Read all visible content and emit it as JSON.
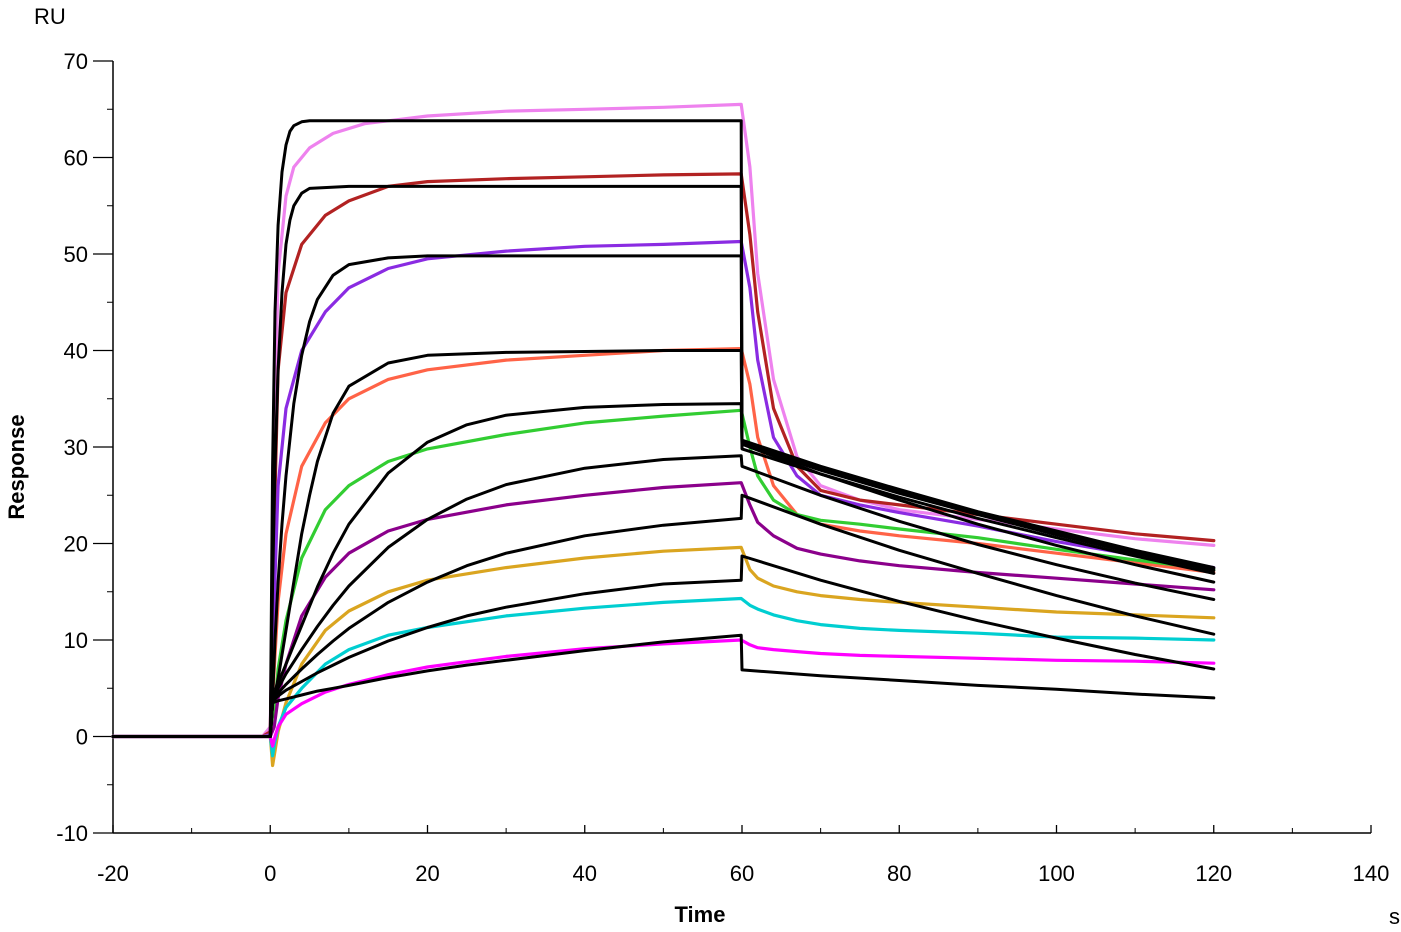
{
  "chart_data": {
    "type": "line",
    "title": "",
    "xlabel": "Time",
    "ylabel": "Response",
    "x_unit": "s",
    "y_unit": "RU",
    "xlim": [
      -20,
      140
    ],
    "ylim": [
      -10,
      70
    ],
    "x_ticks": [
      -20,
      0,
      20,
      40,
      60,
      80,
      100,
      120,
      140
    ],
    "y_ticks": [
      -10,
      0,
      10,
      20,
      30,
      40,
      50,
      60,
      70
    ],
    "grid": false,
    "legend": "none",
    "series": [
      {
        "color": "#ee82ee",
        "x": [
          -20,
          -1,
          0,
          0.5,
          1,
          2,
          3,
          5,
          8,
          12,
          20,
          30,
          40,
          50,
          59.9,
          61,
          62,
          64,
          67,
          70,
          75,
          80,
          90,
          100,
          110,
          120
        ],
        "y": [
          0,
          0,
          1,
          30,
          48,
          56,
          59,
          61,
          62.5,
          63.5,
          64.3,
          64.8,
          65,
          65.2,
          65.5,
          59,
          48,
          37,
          29,
          26,
          24.5,
          23.5,
          22.5,
          21.5,
          20.5,
          19.8
        ]
      },
      {
        "color": "#b22222",
        "x": [
          -20,
          -1,
          0,
          0.5,
          1,
          2,
          4,
          7,
          10,
          15,
          20,
          30,
          40,
          50,
          59.9,
          61,
          62,
          64,
          67,
          70,
          75,
          80,
          90,
          100,
          110,
          120
        ],
        "y": [
          0,
          0,
          0.5,
          22,
          38,
          46,
          51,
          54,
          55.5,
          57,
          57.5,
          57.8,
          58,
          58.2,
          58.3,
          52,
          44,
          34,
          28,
          25.5,
          24.5,
          24,
          23,
          22,
          21,
          20.3
        ]
      },
      {
        "color": "#8a2be2",
        "x": [
          -20,
          -1,
          0,
          0.5,
          1,
          2,
          4,
          7,
          10,
          15,
          20,
          30,
          40,
          50,
          59.9,
          61,
          62,
          64,
          67,
          70,
          75,
          80,
          90,
          100,
          110,
          120
        ],
        "y": [
          0,
          0,
          0.2,
          14,
          26,
          34,
          40,
          44,
          46.5,
          48.5,
          49.5,
          50.3,
          50.8,
          51,
          51.3,
          46.5,
          39,
          31,
          27,
          25,
          24,
          23.2,
          21.8,
          20.2,
          18.8,
          17.5
        ]
      },
      {
        "color": "#ff6347",
        "x": [
          -20,
          -1,
          0,
          0.5,
          1,
          2,
          4,
          7,
          10,
          15,
          20,
          30,
          40,
          50,
          59.9,
          61,
          62,
          64,
          67,
          70,
          75,
          80,
          90,
          100,
          110,
          120
        ],
        "y": [
          0,
          0,
          0,
          7,
          14,
          21,
          28,
          32.5,
          35,
          37,
          38,
          39,
          39.5,
          40,
          40.2,
          36.5,
          31,
          26,
          23,
          22,
          21.3,
          20.8,
          20,
          19,
          18,
          17
        ]
      },
      {
        "color": "#32cd32",
        "x": [
          -20,
          -1,
          0,
          0.5,
          1,
          2,
          4,
          7,
          10,
          15,
          20,
          30,
          40,
          50,
          59.9,
          61,
          62,
          64,
          67,
          70,
          75,
          80,
          90,
          100,
          110,
          120
        ],
        "y": [
          0,
          0,
          0,
          2,
          7,
          12,
          18.5,
          23.5,
          26,
          28.5,
          29.8,
          31.3,
          32.5,
          33.2,
          33.8,
          30,
          27,
          24.5,
          23,
          22.4,
          22,
          21.5,
          20.6,
          19.4,
          18.3,
          17.3
        ]
      },
      {
        "color": "#8b008b",
        "x": [
          -20,
          -1,
          0,
          0.5,
          1,
          2,
          4,
          7,
          10,
          15,
          20,
          30,
          40,
          50,
          59.9,
          61,
          62,
          64,
          67,
          70,
          75,
          80,
          90,
          100,
          110,
          120
        ],
        "y": [
          0,
          0,
          0,
          1,
          4,
          7.5,
          12.5,
          16.5,
          19,
          21.3,
          22.5,
          24,
          25,
          25.8,
          26.3,
          24,
          22.2,
          20.8,
          19.5,
          18.9,
          18.2,
          17.7,
          17,
          16.4,
          15.8,
          15.2
        ]
      },
      {
        "color": "#daa520",
        "x": [
          -20,
          -1,
          0,
          0.3,
          0.6,
          1,
          2,
          4,
          7,
          10,
          15,
          20,
          30,
          40,
          50,
          59.9,
          61,
          62,
          64,
          67,
          70,
          75,
          80,
          90,
          100,
          110,
          120
        ],
        "y": [
          0,
          0,
          0,
          -3,
          -1.5,
          0.5,
          3.5,
          7.5,
          11,
          13,
          15,
          16.2,
          17.5,
          18.5,
          19.2,
          19.6,
          17.3,
          16.4,
          15.6,
          15,
          14.6,
          14.2,
          13.9,
          13.4,
          12.9,
          12.6,
          12.3
        ]
      },
      {
        "color": "#00ced1",
        "x": [
          -20,
          -1,
          0,
          0.3,
          0.6,
          1,
          2,
          4,
          7,
          10,
          15,
          20,
          30,
          40,
          50,
          59.9,
          61,
          62,
          64,
          67,
          70,
          75,
          80,
          90,
          100,
          110,
          120
        ],
        "y": [
          0,
          0,
          0,
          -2,
          -0.5,
          1,
          3,
          5,
          7.5,
          9,
          10.5,
          11.3,
          12.5,
          13.3,
          13.9,
          14.3,
          13.6,
          13.2,
          12.6,
          12,
          11.6,
          11.2,
          11,
          10.7,
          10.3,
          10.2,
          10
        ]
      },
      {
        "color": "#ff00ff",
        "x": [
          -20,
          -1,
          0,
          0.3,
          0.6,
          1,
          2,
          4,
          7,
          10,
          15,
          20,
          30,
          40,
          50,
          59.9,
          61,
          62,
          64,
          67,
          70,
          75,
          80,
          90,
          100,
          110,
          120
        ],
        "y": [
          0,
          0,
          0,
          -1,
          0,
          1,
          2.3,
          3.4,
          4.6,
          5.4,
          6.4,
          7.2,
          8.3,
          9.1,
          9.6,
          10,
          9.5,
          9.2,
          9,
          8.8,
          8.6,
          8.4,
          8.3,
          8.1,
          7.9,
          7.8,
          7.6
        ]
      },
      {
        "color": "#000000",
        "fit": true,
        "x": [
          -20,
          0,
          0.3,
          0.6,
          1,
          1.5,
          2,
          2.5,
          3,
          4,
          5,
          10,
          20,
          30,
          40,
          50,
          59.9,
          60,
          70,
          80,
          90,
          100,
          110,
          120
        ],
        "y": [
          0,
          0,
          28,
          44,
          53,
          58.5,
          61.3,
          62.7,
          63.3,
          63.7,
          63.8,
          63.8,
          63.8,
          63.8,
          63.8,
          63.8,
          63.8,
          30.7,
          28,
          25.6,
          23.3,
          21.3,
          19.3,
          17.5
        ]
      },
      {
        "color": "#000000",
        "fit": true,
        "x": [
          -20,
          0,
          0.3,
          0.6,
          1,
          1.5,
          2,
          2.5,
          3,
          4,
          5,
          10,
          20,
          30,
          40,
          50,
          59.9,
          60,
          70,
          80,
          90,
          100,
          110,
          120
        ],
        "y": [
          0,
          0,
          16,
          28,
          38,
          46,
          51,
          53.5,
          55,
          56.3,
          56.8,
          57,
          57,
          57,
          57,
          57,
          57,
          30.5,
          27.8,
          25.4,
          23.2,
          21.1,
          19.2,
          17.4
        ]
      },
      {
        "color": "#000000",
        "fit": true,
        "x": [
          -20,
          0,
          0.3,
          0.6,
          1,
          1.5,
          2,
          3,
          4,
          5,
          6,
          8,
          10,
          15,
          20,
          30,
          40,
          50,
          59.9,
          60,
          70,
          80,
          90,
          100,
          110,
          120
        ],
        "y": [
          0,
          0,
          4,
          10,
          16,
          22,
          27,
          34.5,
          39.5,
          43,
          45.3,
          47.8,
          48.9,
          49.6,
          49.8,
          49.8,
          49.8,
          49.8,
          49.8,
          30.3,
          27.6,
          25.2,
          23,
          20.9,
          19,
          17.2
        ]
      },
      {
        "color": "#000000",
        "fit": true,
        "x": [
          -20,
          0,
          0.3,
          0.6,
          1,
          2,
          3,
          4,
          5,
          6,
          8,
          10,
          15,
          20,
          30,
          40,
          50,
          59.9,
          60,
          70,
          80,
          90,
          100,
          110,
          120
        ],
        "y": [
          0,
          0,
          3.5,
          4.5,
          6,
          11,
          16,
          21,
          25,
          28.5,
          33.5,
          36.3,
          38.7,
          39.5,
          39.8,
          39.9,
          40,
          40,
          29.8,
          27.2,
          24.8,
          22.6,
          20.6,
          18.7,
          16.9
        ]
      },
      {
        "color": "#000000",
        "fit": true,
        "x": [
          -20,
          0,
          0.3,
          0.6,
          1,
          2,
          3,
          4,
          5,
          6,
          8,
          10,
          15,
          20,
          25,
          30,
          40,
          50,
          59.9,
          60,
          70,
          80,
          90,
          100,
          110,
          120
        ],
        "y": [
          0,
          0,
          3.5,
          4.5,
          5.5,
          7.5,
          9.5,
          11.5,
          13.5,
          15.5,
          19,
          22,
          27.3,
          30.5,
          32.3,
          33.3,
          34.1,
          34.4,
          34.5,
          30.3,
          27.2,
          24.5,
          22,
          19.8,
          17.8,
          16
        ]
      },
      {
        "color": "#000000",
        "fit": true,
        "x": [
          -20,
          0,
          0.3,
          0.6,
          1,
          2,
          4,
          6,
          8,
          10,
          15,
          20,
          25,
          30,
          40,
          50,
          59.9,
          60,
          70,
          80,
          90,
          100,
          110,
          120
        ],
        "y": [
          0,
          0,
          3.5,
          4.2,
          5,
          6.5,
          9,
          11.4,
          13.6,
          15.6,
          19.6,
          22.5,
          24.6,
          26.1,
          27.8,
          28.7,
          29.1,
          28,
          25,
          22.3,
          19.9,
          17.8,
          15.9,
          14.2
        ]
      },
      {
        "color": "#000000",
        "fit": true,
        "x": [
          -20,
          0,
          0.3,
          0.6,
          1,
          2,
          4,
          6,
          8,
          10,
          15,
          20,
          25,
          30,
          40,
          50,
          59.9,
          60,
          70,
          80,
          90,
          100,
          110,
          120
        ],
        "y": [
          0,
          0,
          3.5,
          4,
          4.5,
          5.4,
          7,
          8.5,
          9.9,
          11.2,
          13.9,
          16,
          17.7,
          19,
          20.8,
          21.9,
          22.6,
          25,
          22,
          19.3,
          16.9,
          14.6,
          12.5,
          10.6
        ]
      },
      {
        "color": "#000000",
        "fit": true,
        "x": [
          -20,
          0,
          0.3,
          0.6,
          1,
          2,
          4,
          6,
          8,
          10,
          15,
          20,
          25,
          30,
          40,
          50,
          59.9,
          60,
          70,
          80,
          90,
          100,
          110,
          120
        ],
        "y": [
          0,
          0,
          3.5,
          3.9,
          4.2,
          4.8,
          5.7,
          6.6,
          7.4,
          8.2,
          9.9,
          11.3,
          12.5,
          13.4,
          14.8,
          15.8,
          16.2,
          18.7,
          16.2,
          14,
          12,
          10.2,
          8.5,
          7
        ]
      },
      {
        "color": "#000000",
        "fit": true,
        "x": [
          -20,
          0,
          0.3,
          0.6,
          1,
          2,
          4,
          6,
          8,
          10,
          15,
          20,
          25,
          30,
          40,
          50,
          59.9,
          60,
          70,
          80,
          90,
          100,
          110,
          120
        ],
        "y": [
          0,
          0,
          3.5,
          3.6,
          3.7,
          3.9,
          4.3,
          4.7,
          5,
          5.3,
          6.1,
          6.8,
          7.4,
          7.9,
          8.9,
          9.8,
          10.5,
          6.9,
          6.3,
          5.8,
          5.3,
          4.9,
          4.4,
          4
        ]
      }
    ]
  }
}
